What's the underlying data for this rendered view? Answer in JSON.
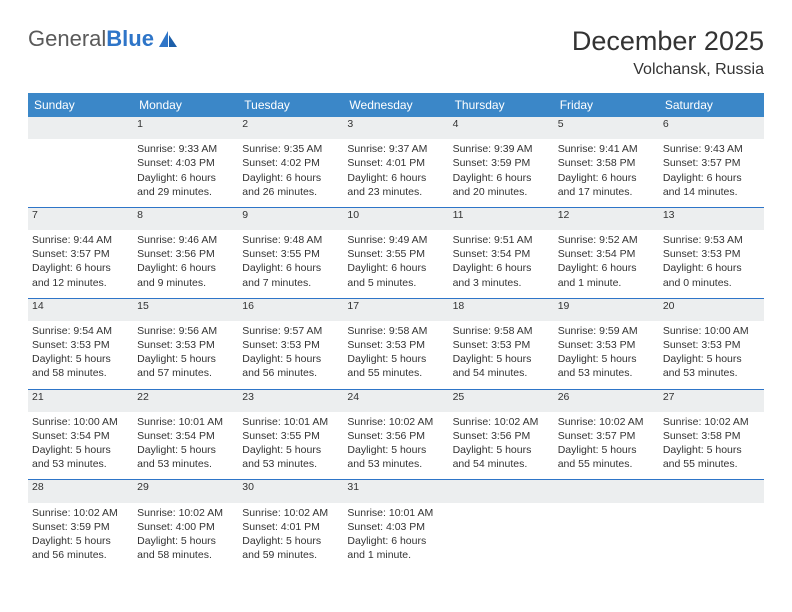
{
  "brand": {
    "name_gray": "General",
    "name_blue": "Blue"
  },
  "title": "December 2025",
  "location": "Volchansk, Russia",
  "day_headers": [
    "Sunday",
    "Monday",
    "Tuesday",
    "Wednesday",
    "Thursday",
    "Friday",
    "Saturday"
  ],
  "colors": {
    "header_bg": "#3b87c8",
    "header_text": "#ffffff",
    "daynum_bg": "#eceeef",
    "daynum_text": "#676767",
    "rule": "#2e75c8",
    "body_text": "#333333",
    "logo_gray": "#5a5a5a",
    "logo_blue": "#2e75c8"
  },
  "typography": {
    "title_fontsize": 27,
    "location_fontsize": 16,
    "dayheader_fontsize": 12,
    "daynum_fontsize": 11,
    "cell_fontsize": 10.5,
    "logo_fontsize": 22
  },
  "weeks": [
    {
      "nums": [
        "",
        "1",
        "2",
        "3",
        "4",
        "5",
        "6"
      ],
      "cells": [
        {
          "sunrise": "",
          "sunset": "",
          "daylight": ""
        },
        {
          "sunrise": "Sunrise: 9:33 AM",
          "sunset": "Sunset: 4:03 PM",
          "daylight": "Daylight: 6 hours and 29 minutes."
        },
        {
          "sunrise": "Sunrise: 9:35 AM",
          "sunset": "Sunset: 4:02 PM",
          "daylight": "Daylight: 6 hours and 26 minutes."
        },
        {
          "sunrise": "Sunrise: 9:37 AM",
          "sunset": "Sunset: 4:01 PM",
          "daylight": "Daylight: 6 hours and 23 minutes."
        },
        {
          "sunrise": "Sunrise: 9:39 AM",
          "sunset": "Sunset: 3:59 PM",
          "daylight": "Daylight: 6 hours and 20 minutes."
        },
        {
          "sunrise": "Sunrise: 9:41 AM",
          "sunset": "Sunset: 3:58 PM",
          "daylight": "Daylight: 6 hours and 17 minutes."
        },
        {
          "sunrise": "Sunrise: 9:43 AM",
          "sunset": "Sunset: 3:57 PM",
          "daylight": "Daylight: 6 hours and 14 minutes."
        }
      ]
    },
    {
      "nums": [
        "7",
        "8",
        "9",
        "10",
        "11",
        "12",
        "13"
      ],
      "cells": [
        {
          "sunrise": "Sunrise: 9:44 AM",
          "sunset": "Sunset: 3:57 PM",
          "daylight": "Daylight: 6 hours and 12 minutes."
        },
        {
          "sunrise": "Sunrise: 9:46 AM",
          "sunset": "Sunset: 3:56 PM",
          "daylight": "Daylight: 6 hours and 9 minutes."
        },
        {
          "sunrise": "Sunrise: 9:48 AM",
          "sunset": "Sunset: 3:55 PM",
          "daylight": "Daylight: 6 hours and 7 minutes."
        },
        {
          "sunrise": "Sunrise: 9:49 AM",
          "sunset": "Sunset: 3:55 PM",
          "daylight": "Daylight: 6 hours and 5 minutes."
        },
        {
          "sunrise": "Sunrise: 9:51 AM",
          "sunset": "Sunset: 3:54 PM",
          "daylight": "Daylight: 6 hours and 3 minutes."
        },
        {
          "sunrise": "Sunrise: 9:52 AM",
          "sunset": "Sunset: 3:54 PM",
          "daylight": "Daylight: 6 hours and 1 minute."
        },
        {
          "sunrise": "Sunrise: 9:53 AM",
          "sunset": "Sunset: 3:53 PM",
          "daylight": "Daylight: 6 hours and 0 minutes."
        }
      ]
    },
    {
      "nums": [
        "14",
        "15",
        "16",
        "17",
        "18",
        "19",
        "20"
      ],
      "cells": [
        {
          "sunrise": "Sunrise: 9:54 AM",
          "sunset": "Sunset: 3:53 PM",
          "daylight": "Daylight: 5 hours and 58 minutes."
        },
        {
          "sunrise": "Sunrise: 9:56 AM",
          "sunset": "Sunset: 3:53 PM",
          "daylight": "Daylight: 5 hours and 57 minutes."
        },
        {
          "sunrise": "Sunrise: 9:57 AM",
          "sunset": "Sunset: 3:53 PM",
          "daylight": "Daylight: 5 hours and 56 minutes."
        },
        {
          "sunrise": "Sunrise: 9:58 AM",
          "sunset": "Sunset: 3:53 PM",
          "daylight": "Daylight: 5 hours and 55 minutes."
        },
        {
          "sunrise": "Sunrise: 9:58 AM",
          "sunset": "Sunset: 3:53 PM",
          "daylight": "Daylight: 5 hours and 54 minutes."
        },
        {
          "sunrise": "Sunrise: 9:59 AM",
          "sunset": "Sunset: 3:53 PM",
          "daylight": "Daylight: 5 hours and 53 minutes."
        },
        {
          "sunrise": "Sunrise: 10:00 AM",
          "sunset": "Sunset: 3:53 PM",
          "daylight": "Daylight: 5 hours and 53 minutes."
        }
      ]
    },
    {
      "nums": [
        "21",
        "22",
        "23",
        "24",
        "25",
        "26",
        "27"
      ],
      "cells": [
        {
          "sunrise": "Sunrise: 10:00 AM",
          "sunset": "Sunset: 3:54 PM",
          "daylight": "Daylight: 5 hours and 53 minutes."
        },
        {
          "sunrise": "Sunrise: 10:01 AM",
          "sunset": "Sunset: 3:54 PM",
          "daylight": "Daylight: 5 hours and 53 minutes."
        },
        {
          "sunrise": "Sunrise: 10:01 AM",
          "sunset": "Sunset: 3:55 PM",
          "daylight": "Daylight: 5 hours and 53 minutes."
        },
        {
          "sunrise": "Sunrise: 10:02 AM",
          "sunset": "Sunset: 3:56 PM",
          "daylight": "Daylight: 5 hours and 53 minutes."
        },
        {
          "sunrise": "Sunrise: 10:02 AM",
          "sunset": "Sunset: 3:56 PM",
          "daylight": "Daylight: 5 hours and 54 minutes."
        },
        {
          "sunrise": "Sunrise: 10:02 AM",
          "sunset": "Sunset: 3:57 PM",
          "daylight": "Daylight: 5 hours and 55 minutes."
        },
        {
          "sunrise": "Sunrise: 10:02 AM",
          "sunset": "Sunset: 3:58 PM",
          "daylight": "Daylight: 5 hours and 55 minutes."
        }
      ]
    },
    {
      "nums": [
        "28",
        "29",
        "30",
        "31",
        "",
        "",
        ""
      ],
      "cells": [
        {
          "sunrise": "Sunrise: 10:02 AM",
          "sunset": "Sunset: 3:59 PM",
          "daylight": "Daylight: 5 hours and 56 minutes."
        },
        {
          "sunrise": "Sunrise: 10:02 AM",
          "sunset": "Sunset: 4:00 PM",
          "daylight": "Daylight: 5 hours and 58 minutes."
        },
        {
          "sunrise": "Sunrise: 10:02 AM",
          "sunset": "Sunset: 4:01 PM",
          "daylight": "Daylight: 5 hours and 59 minutes."
        },
        {
          "sunrise": "Sunrise: 10:01 AM",
          "sunset": "Sunset: 4:03 PM",
          "daylight": "Daylight: 6 hours and 1 minute."
        },
        {
          "sunrise": "",
          "sunset": "",
          "daylight": ""
        },
        {
          "sunrise": "",
          "sunset": "",
          "daylight": ""
        },
        {
          "sunrise": "",
          "sunset": "",
          "daylight": ""
        }
      ]
    }
  ]
}
